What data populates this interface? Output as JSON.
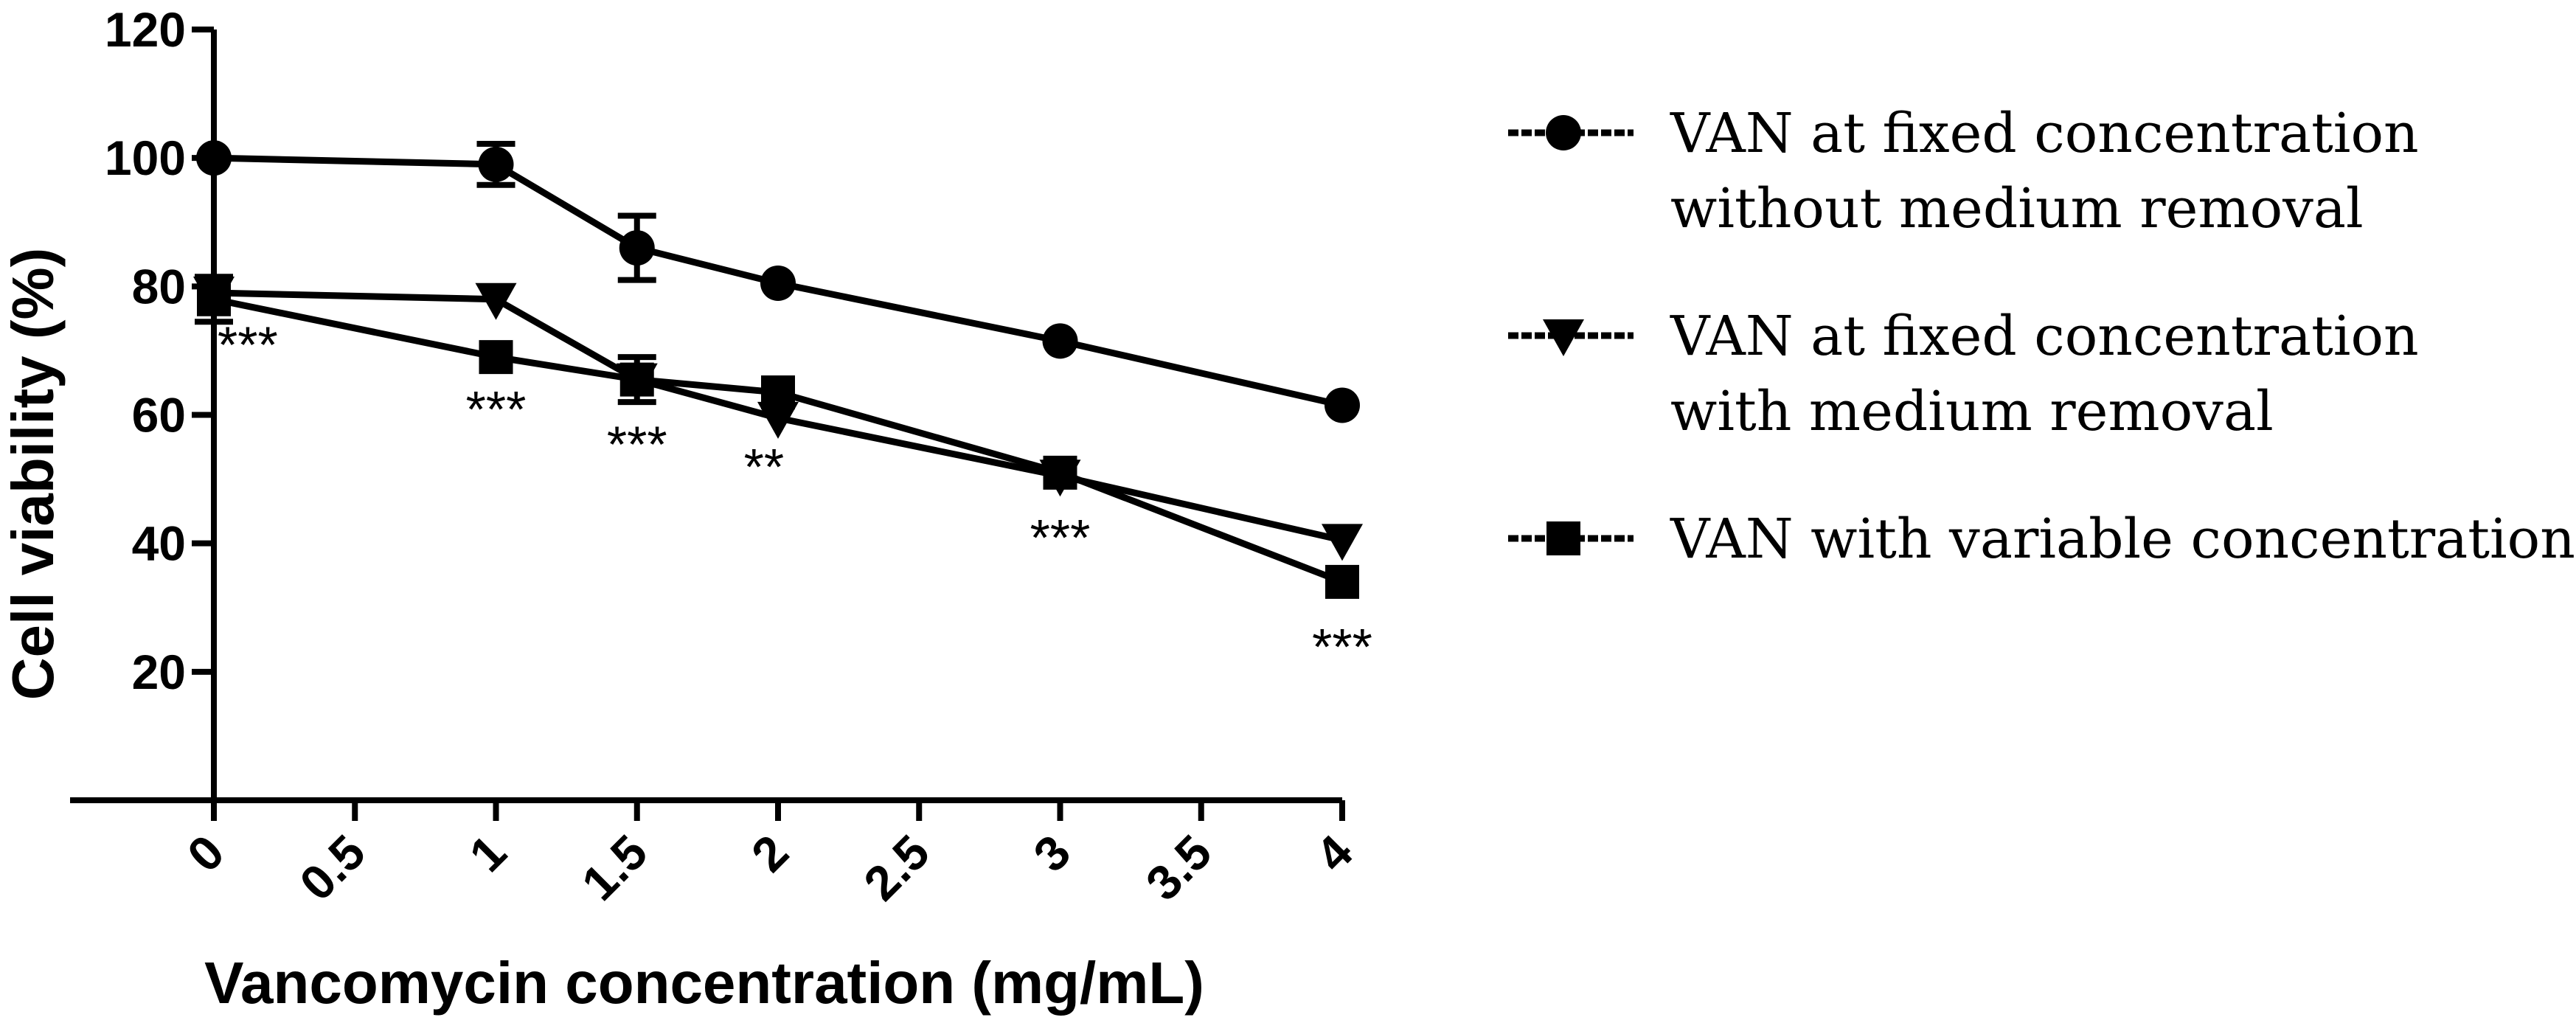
{
  "chart_data": {
    "type": "line",
    "title": "",
    "xlabel": "Vancomycin concentration (mg/mL)",
    "ylabel": "Cell viability (%)",
    "xlim": [
      0,
      4
    ],
    "ylim": [
      0,
      120
    ],
    "x_ticks": [
      "0",
      "0.5",
      "1",
      "1.5",
      "2",
      "2.5",
      "3",
      "3.5",
      "4"
    ],
    "y_ticks": [
      "20",
      "40",
      "60",
      "80",
      "100",
      "120"
    ],
    "legend_position": "right",
    "series": [
      {
        "name": "VAN at fixed concentration without medium removal",
        "legend_lines": [
          "VAN at fixed concentration",
          "without medium removal"
        ],
        "marker": "circle",
        "x": [
          0,
          1,
          1.5,
          2,
          3,
          4
        ],
        "values": [
          100,
          99,
          86,
          80.5,
          71.5,
          61.5
        ],
        "errors": [
          0,
          3.2,
          5,
          0,
          0,
          0
        ]
      },
      {
        "name": "VAN at fixed concentration with medium removal",
        "legend_lines": [
          "VAN at fixed concentration",
          "with medium removal"
        ],
        "marker": "triangle-down",
        "x": [
          0,
          1,
          1.5,
          2,
          3,
          4
        ],
        "values": [
          79,
          78,
          65.5,
          59.5,
          50.5,
          40.5
        ],
        "errors": [
          0,
          0,
          0,
          0,
          0,
          0
        ]
      },
      {
        "name": "VAN with variable concentration",
        "legend_lines": [
          "VAN with variable concentration"
        ],
        "marker": "square",
        "x": [
          0,
          1,
          1.5,
          2,
          3,
          4
        ],
        "values": [
          78,
          69,
          65.5,
          63.5,
          51,
          34
        ],
        "errors": [
          3.5,
          0,
          3.5,
          0,
          0,
          0
        ]
      }
    ],
    "annotations": [
      {
        "text": "***",
        "x": 0.12,
        "y": 71
      },
      {
        "text": "***",
        "x": 1.0,
        "y": 61
      },
      {
        "text": "***",
        "x": 1.5,
        "y": 55.5
      },
      {
        "text": "**",
        "x": 1.95,
        "y": 52
      },
      {
        "text": "***",
        "x": 3.0,
        "y": 41
      },
      {
        "text": "***",
        "x": 4.0,
        "y": 24
      }
    ]
  }
}
